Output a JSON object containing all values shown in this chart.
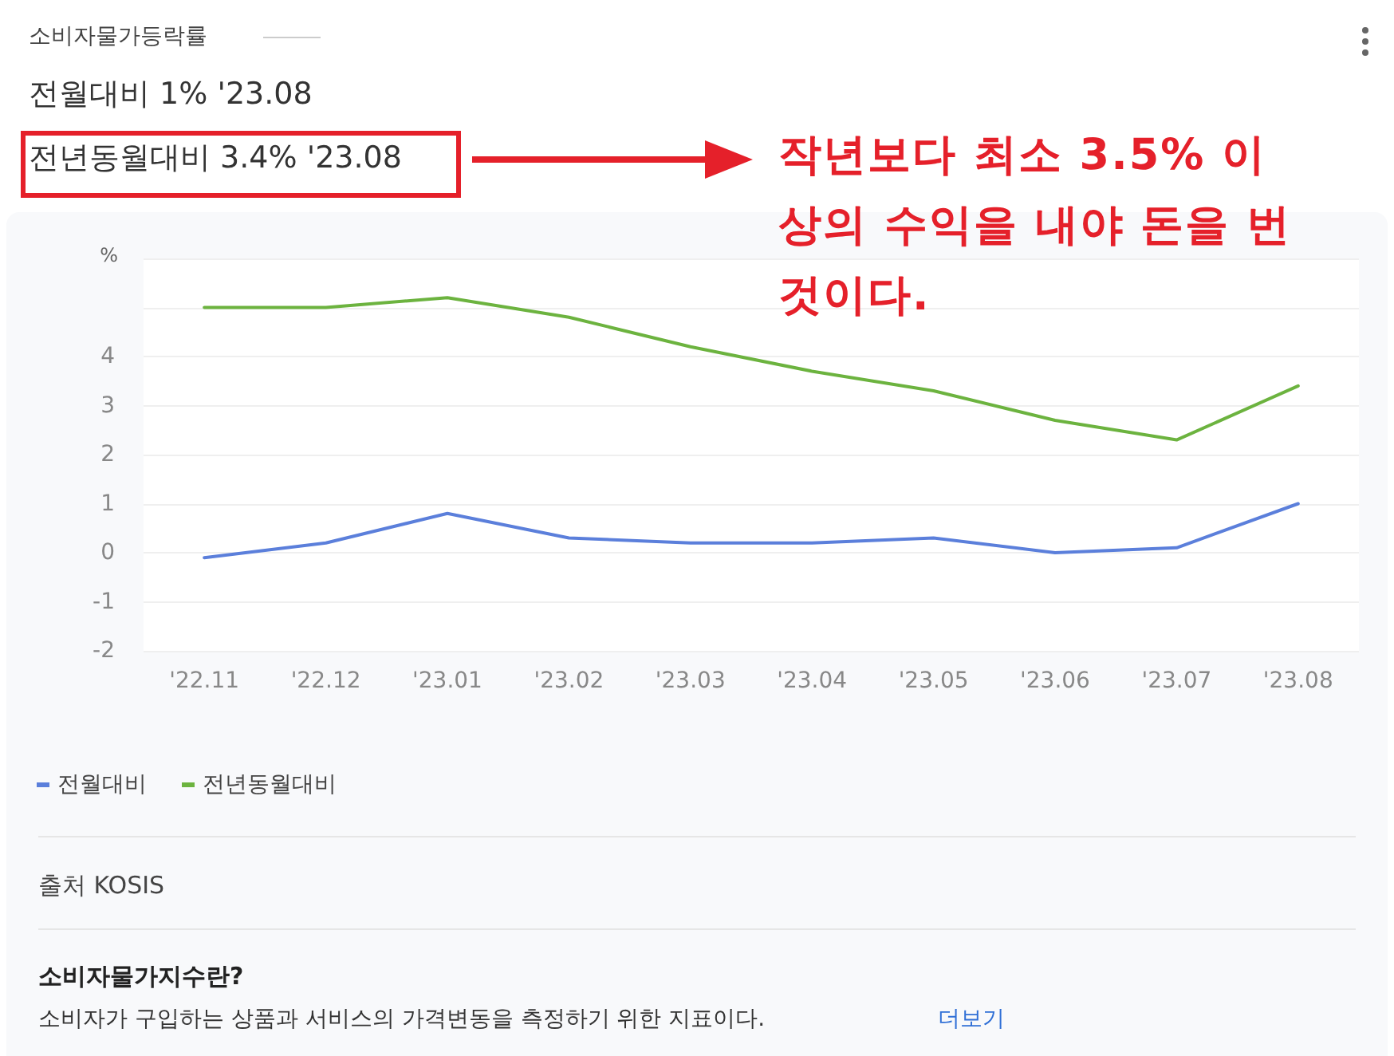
{
  "chart_data": {
    "type": "line",
    "title": "소비자물가등락률",
    "ylabel": "%",
    "annotations": [
      "전월대비 1% '23.08",
      "전년동월대비 3.4% '23.08",
      "작년보다 최소 3.5% 이상의 수익을 내야 돈을 번 것이다.",
      "출처 KOSIS",
      "소비자물가지수란?",
      "소비자가 구입하는 상품과 서비스의 가격변동을 측정하기 위한 지표이다.",
      "더보기"
    ],
    "categories": [
      "'22.11",
      "'22.12",
      "'23.01",
      "'23.02",
      "'23.03",
      "'23.04",
      "'23.05",
      "'23.06",
      "'23.07",
      "'23.08"
    ],
    "series": [
      {
        "name": "전월대비",
        "color": "#5b7fdb",
        "values": [
          -0.1,
          0.2,
          0.8,
          0.3,
          0.2,
          0.2,
          0.3,
          0.0,
          0.1,
          1.0
        ]
      },
      {
        "name": "전년동월대비",
        "color": "#6cb33f",
        "values": [
          5.0,
          5.0,
          5.2,
          4.8,
          4.2,
          3.7,
          3.3,
          2.7,
          2.3,
          3.4
        ]
      }
    ],
    "ylim": [
      -2,
      6
    ],
    "yticks": [
      -2,
      -1,
      0,
      1,
      2,
      3,
      4,
      {
        "value": 5,
        "label": null
      },
      {
        "value": 6,
        "label": null
      }
    ],
    "grid": "y",
    "legend": "bottom left",
    "marker": "none",
    "line_style": "solid"
  }
}
